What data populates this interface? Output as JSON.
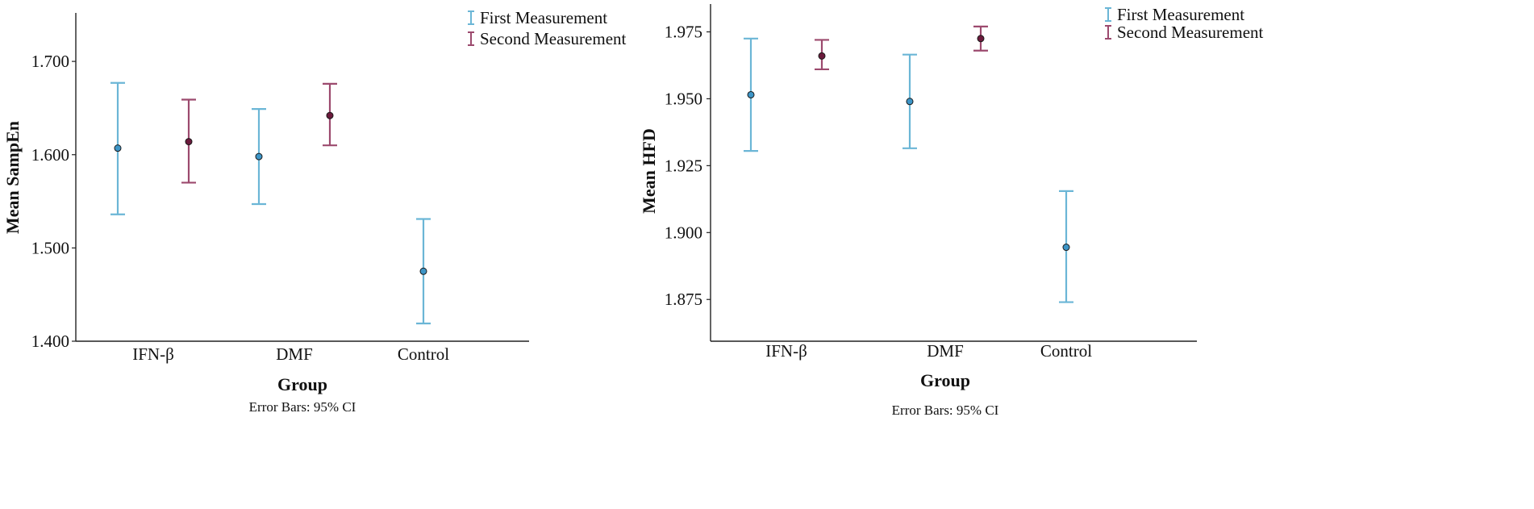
{
  "colors": {
    "first": "#6bb6d6",
    "first_point": "#3d95c7",
    "second": "#9c4a6e",
    "second_point": "#6b1a3c",
    "axis": "#222222"
  },
  "chart_data": [
    {
      "type": "errorbar",
      "xlabel": "Group",
      "ylabel": "Mean SampEn",
      "note": "Error Bars: 95% CI",
      "categories": [
        "IFN-β",
        "DMF",
        "Control"
      ],
      "yticks": [
        "1.400",
        "1.500",
        "1.600",
        "1.700"
      ],
      "ylim": [
        1.4,
        1.752
      ],
      "legend": {
        "position": "top-right",
        "entries": [
          "First Measurement",
          "Second Measurement"
        ]
      },
      "series": [
        {
          "name": "First Measurement",
          "color_key": "first",
          "points": [
            {
              "category": "IFN-β",
              "mean": 1.607,
              "lower": 1.536,
              "upper": 1.677
            },
            {
              "category": "DMF",
              "mean": 1.598,
              "lower": 1.547,
              "upper": 1.649
            },
            {
              "category": "Control",
              "mean": 1.475,
              "lower": 1.419,
              "upper": 1.531
            }
          ]
        },
        {
          "name": "Second Measurement",
          "color_key": "second",
          "points": [
            {
              "category": "IFN-β",
              "mean": 1.614,
              "lower": 1.57,
              "upper": 1.659
            },
            {
              "category": "DMF",
              "mean": 1.642,
              "lower": 1.61,
              "upper": 1.676
            }
          ]
        }
      ]
    },
    {
      "type": "errorbar",
      "xlabel": "Group",
      "ylabel": "Mean HFD",
      "note": "Error Bars: 95% CI",
      "categories": [
        "IFN-β",
        "DMF",
        "Control"
      ],
      "yticks": [
        "1.875",
        "1.900",
        "1.925",
        "1.950",
        "1.975"
      ],
      "ylim": [
        1.8594,
        1.9854
      ],
      "legend": {
        "position": "top-right",
        "entries": [
          "First Measurement",
          "Second Measurement"
        ]
      },
      "series": [
        {
          "name": "First Measurement",
          "color_key": "first",
          "points": [
            {
              "category": "IFN-β",
              "mean": 1.9515,
              "lower": 1.9305,
              "upper": 1.9725
            },
            {
              "category": "DMF",
              "mean": 1.949,
              "lower": 1.9315,
              "upper": 1.9665
            },
            {
              "category": "Control",
              "mean": 1.8945,
              "lower": 1.874,
              "upper": 1.9155
            }
          ]
        },
        {
          "name": "Second Measurement",
          "color_key": "second",
          "points": [
            {
              "category": "IFN-β",
              "mean": 1.966,
              "lower": 1.961,
              "upper": 1.972
            },
            {
              "category": "DMF",
              "mean": 1.9725,
              "lower": 1.968,
              "upper": 1.977
            }
          ]
        }
      ]
    }
  ]
}
